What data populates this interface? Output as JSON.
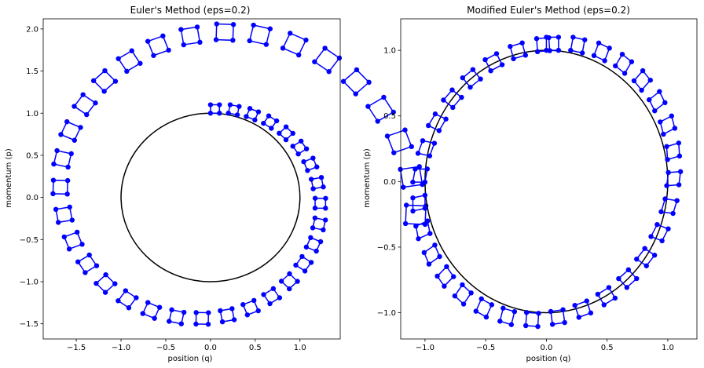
{
  "chart_data": [
    {
      "type": "scatter",
      "title": "Euler's Method (eps=0.2)",
      "xlabel": "position (q)",
      "ylabel": "momentum (p)",
      "xlim": [
        -1.87,
        1.45
      ],
      "ylim": [
        -1.68,
        2.12
      ],
      "xticks": [
        -1.5,
        -1.0,
        -0.5,
        0.0,
        0.5,
        1.0
      ],
      "xtick_labels": [
        "−1.5",
        "−1.0",
        "−0.5",
        "0.0",
        "0.5",
        "1.0"
      ],
      "yticks": [
        -1.5,
        -1.0,
        -0.5,
        0.0,
        0.5,
        1.0,
        1.5,
        2.0
      ],
      "ytick_labels": [
        "−1.5",
        "−1.0",
        "−0.5",
        "0.0",
        "0.5",
        "1.0",
        "1.5",
        "2.0"
      ],
      "method": "euler",
      "eps": 0.2,
      "num_steps": 41,
      "initial_square": {
        "q": [
          0.0,
          0.1,
          0.1,
          0.0
        ],
        "p": [
          1.0,
          1.0,
          1.1,
          1.1
        ]
      },
      "reference_circle_radius": 1.0,
      "marker_color": "#0000ff",
      "line_color": "#0000ff",
      "grid": false
    },
    {
      "type": "scatter",
      "title": "Modified Euler's Method (eps=0.2)",
      "xlabel": "position (q)",
      "ylabel": "momentum (p)",
      "xlim": [
        -1.2,
        1.24
      ],
      "ylim": [
        -1.2,
        1.24
      ],
      "xticks": [
        -1.0,
        -0.5,
        0.0,
        0.5,
        1.0
      ],
      "xtick_labels": [
        "−1.0",
        "−0.5",
        "0.0",
        "0.5",
        "1.0"
      ],
      "yticks": [
        -1.0,
        -0.5,
        0.0,
        0.5,
        1.0
      ],
      "ytick_labels": [
        "−1.0",
        "−0.5",
        "0.0",
        "0.5",
        "1.0"
      ],
      "method": "modified_euler",
      "eps": 0.2,
      "num_steps": 32,
      "initial_square": {
        "q": [
          0.0,
          0.1,
          0.1,
          0.0
        ],
        "p": [
          1.0,
          1.0,
          1.1,
          1.1
        ]
      },
      "reference_circle_radius": 1.0,
      "marker_color": "#0000ff",
      "line_color": "#0000ff",
      "grid": false
    }
  ]
}
